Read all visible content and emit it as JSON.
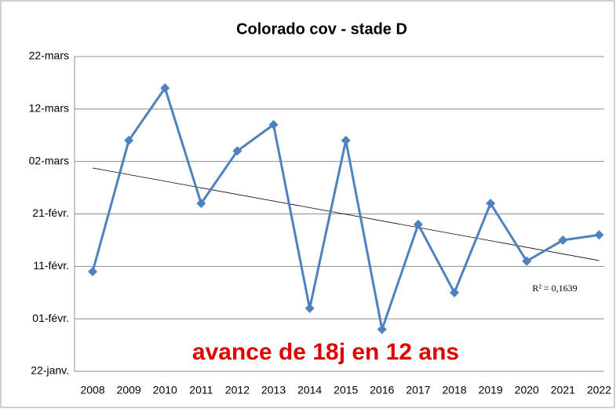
{
  "chart_data": {
    "type": "line",
    "title": "Colorado cov - stade D",
    "categories": [
      "2008",
      "2009",
      "2010",
      "2011",
      "2012",
      "2013",
      "2014",
      "2015",
      "2016",
      "2017",
      "2018",
      "2019",
      "2020",
      "2021",
      "2022"
    ],
    "series": [
      {
        "name": "stade D",
        "color": "#4f81bd",
        "values": [
          41,
          66,
          76,
          54,
          64,
          69,
          34,
          66,
          30,
          50,
          37,
          54,
          43,
          47,
          48
        ]
      }
    ],
    "ylim": [
      22,
      82
    ],
    "yticks": [
      {
        "value": 22,
        "label": "22-janv."
      },
      {
        "value": 32,
        "label": "01-févr."
      },
      {
        "value": 42,
        "label": "11-févr."
      },
      {
        "value": 52,
        "label": "21-févr."
      },
      {
        "value": 62,
        "label": "02-mars"
      },
      {
        "value": 72,
        "label": "12-mars"
      },
      {
        "value": 82,
        "label": "22-mars"
      }
    ],
    "grid": true,
    "trendline": true,
    "annotations": [
      "R² = 0,1639",
      "avance de 18j en 12 ans"
    ]
  }
}
